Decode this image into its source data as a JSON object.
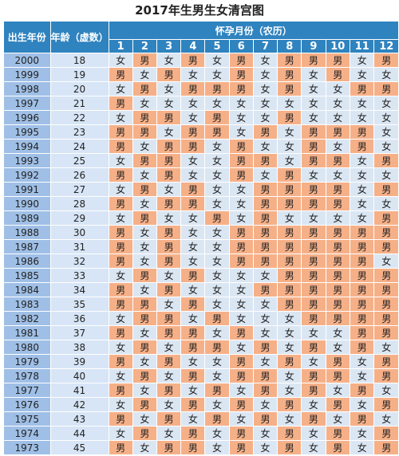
{
  "title": "2017年生男生女清宫图",
  "header": {
    "year_col": "出生年份",
    "age_col": "年龄（虚数）",
    "months_title": "怀孕月份（农历）",
    "months": [
      "1",
      "2",
      "3",
      "4",
      "5",
      "6",
      "7",
      "8",
      "9",
      "10",
      "11",
      "12"
    ]
  },
  "colors": {
    "boy": "#f6b088",
    "girl": "#dbe6f3",
    "header": "#2f83bf",
    "year_bg": "#9fbfe6",
    "age_bg": "#d7e5f6"
  },
  "labels": {
    "boy": "男",
    "girl": "女"
  },
  "rows": [
    {
      "year": "2000",
      "age": "18",
      "cells": [
        "女",
        "男",
        "女",
        "男",
        "女",
        "男",
        "女",
        "男",
        "男",
        "男",
        "女",
        "男"
      ]
    },
    {
      "year": "1999",
      "age": "19",
      "cells": [
        "男",
        "女",
        "男",
        "女",
        "女",
        "男",
        "女",
        "男",
        "女",
        "男",
        "女",
        "女"
      ]
    },
    {
      "year": "1998",
      "age": "20",
      "cells": [
        "女",
        "男",
        "女",
        "男",
        "男",
        "男",
        "女",
        "男",
        "女",
        "女",
        "男",
        "男"
      ]
    },
    {
      "year": "1997",
      "age": "21",
      "cells": [
        "男",
        "女",
        "女",
        "女",
        "女",
        "女",
        "女",
        "女",
        "女",
        "女",
        "女",
        "女"
      ]
    },
    {
      "year": "1996",
      "age": "22",
      "cells": [
        "女",
        "男",
        "男",
        "女",
        "男",
        "女",
        "女",
        "男",
        "女",
        "女",
        "女",
        "女"
      ]
    },
    {
      "year": "1995",
      "age": "23",
      "cells": [
        "男",
        "男",
        "女",
        "男",
        "男",
        "女",
        "男",
        "女",
        "男",
        "男",
        "男",
        "女"
      ]
    },
    {
      "year": "1994",
      "age": "24",
      "cells": [
        "男",
        "女",
        "男",
        "男",
        "女",
        "男",
        "女",
        "女",
        "男",
        "女",
        "男",
        "女"
      ]
    },
    {
      "year": "1993",
      "age": "25",
      "cells": [
        "女",
        "男",
        "男",
        "女",
        "女",
        "男",
        "男",
        "女",
        "男",
        "男",
        "女",
        "男"
      ]
    },
    {
      "year": "1992",
      "age": "26",
      "cells": [
        "男",
        "女",
        "男",
        "女",
        "女",
        "男",
        "女",
        "男",
        "女",
        "女",
        "女",
        "女"
      ]
    },
    {
      "year": "1991",
      "age": "27",
      "cells": [
        "女",
        "男",
        "女",
        "男",
        "女",
        "女",
        "男",
        "男",
        "男",
        "男",
        "女",
        "男"
      ]
    },
    {
      "year": "1990",
      "age": "28",
      "cells": [
        "男",
        "女",
        "男",
        "男",
        "女",
        "女",
        "男",
        "男",
        "男",
        "男",
        "女",
        "女"
      ]
    },
    {
      "year": "1989",
      "age": "29",
      "cells": [
        "女",
        "男",
        "女",
        "女",
        "男",
        "女",
        "男",
        "女",
        "女",
        "女",
        "女",
        "男"
      ]
    },
    {
      "year": "1988",
      "age": "30",
      "cells": [
        "男",
        "女",
        "男",
        "女",
        "女",
        "男",
        "男",
        "男",
        "男",
        "男",
        "男",
        "男"
      ]
    },
    {
      "year": "1987",
      "age": "31",
      "cells": [
        "男",
        "女",
        "男",
        "女",
        "女",
        "男",
        "男",
        "男",
        "男",
        "男",
        "男",
        "男"
      ]
    },
    {
      "year": "1986",
      "age": "32",
      "cells": [
        "男",
        "女",
        "男",
        "女",
        "女",
        "男",
        "男",
        "男",
        "男",
        "男",
        "男",
        "女"
      ]
    },
    {
      "year": "1985",
      "age": "33",
      "cells": [
        "女",
        "男",
        "女",
        "男",
        "女",
        "女",
        "女",
        "男",
        "男",
        "男",
        "男",
        "男"
      ]
    },
    {
      "year": "1984",
      "age": "34",
      "cells": [
        "男",
        "女",
        "男",
        "女",
        "女",
        "女",
        "男",
        "男",
        "男",
        "男",
        "男",
        "男"
      ]
    },
    {
      "year": "1983",
      "age": "35",
      "cells": [
        "男",
        "男",
        "女",
        "男",
        "女",
        "女",
        "女",
        "男",
        "男",
        "男",
        "男",
        "男"
      ]
    },
    {
      "year": "1982",
      "age": "36",
      "cells": [
        "女",
        "男",
        "男",
        "女",
        "男",
        "女",
        "女",
        "女",
        "男",
        "男",
        "男",
        "男"
      ]
    },
    {
      "year": "1981",
      "age": "37",
      "cells": [
        "男",
        "女",
        "男",
        "男",
        "女",
        "男",
        "女",
        "女",
        "女",
        "女",
        "男",
        "男"
      ]
    },
    {
      "year": "1980",
      "age": "38",
      "cells": [
        "女",
        "男",
        "女",
        "男",
        "男",
        "女",
        "男",
        "女",
        "男",
        "女",
        "男",
        "女"
      ]
    },
    {
      "year": "1979",
      "age": "39",
      "cells": [
        "男",
        "女",
        "男",
        "女",
        "女",
        "男",
        "女",
        "男",
        "女",
        "男",
        "女",
        "男"
      ]
    },
    {
      "year": "1978",
      "age": "40",
      "cells": [
        "女",
        "男",
        "女",
        "男",
        "女",
        "男",
        "男",
        "女",
        "男",
        "男",
        "女",
        "男"
      ]
    },
    {
      "year": "1977",
      "age": "41",
      "cells": [
        "男",
        "女",
        "男",
        "女",
        "男",
        "女",
        "男",
        "女",
        "男",
        "女",
        "男",
        "女"
      ]
    },
    {
      "year": "1976",
      "age": "42",
      "cells": [
        "女",
        "男",
        "女",
        "男",
        "女",
        "男",
        "女",
        "男",
        "女",
        "男",
        "女",
        "男"
      ]
    },
    {
      "year": "1975",
      "age": "43",
      "cells": [
        "男",
        "女",
        "男",
        "女",
        "男",
        "女",
        "男",
        "女",
        "男",
        "女",
        "男",
        "女"
      ]
    },
    {
      "year": "1974",
      "age": "44",
      "cells": [
        "女",
        "男",
        "女",
        "男",
        "女",
        "男",
        "女",
        "男",
        "女",
        "男",
        "女",
        "男"
      ]
    },
    {
      "year": "1973",
      "age": "45",
      "cells": [
        "男",
        "女",
        "男",
        "男",
        "女",
        "男",
        "女",
        "男",
        "女",
        "男",
        "女",
        "男"
      ]
    }
  ]
}
